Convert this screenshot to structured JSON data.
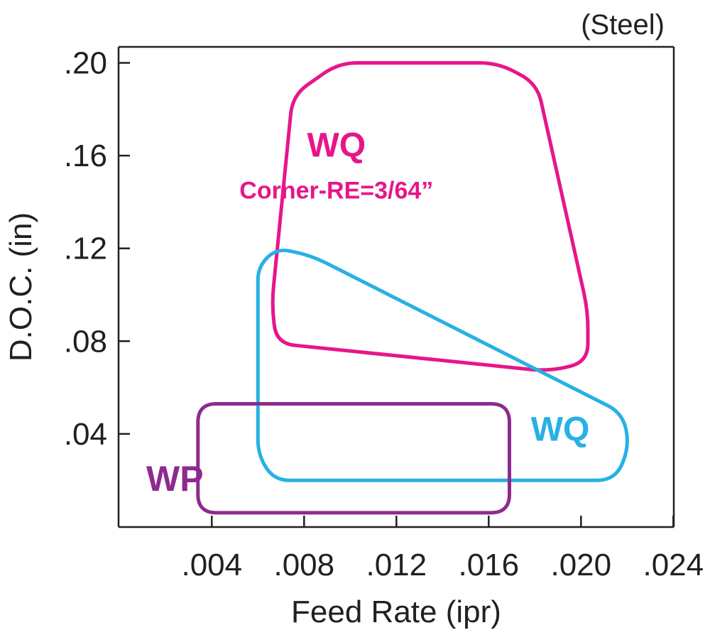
{
  "chart_data": {
    "type": "area",
    "title": "",
    "note": "(Steel)",
    "xlabel": "Feed Rate (ipr)",
    "ylabel": "D.O.C. (in)",
    "xlim": [
      0,
      0.024
    ],
    "ylim": [
      0,
      0.2
    ],
    "x_ticks": [
      {
        "value": 0.004,
        "label": ".004"
      },
      {
        "value": 0.008,
        "label": ".008"
      },
      {
        "value": 0.012,
        "label": ".012"
      },
      {
        "value": 0.016,
        "label": ".016"
      },
      {
        "value": 0.02,
        "label": ".020"
      },
      {
        "value": 0.024,
        "label": ".024"
      }
    ],
    "y_ticks": [
      {
        "value": 0.04,
        "label": ".04"
      },
      {
        "value": 0.08,
        "label": ".08"
      },
      {
        "value": 0.12,
        "label": ".12"
      },
      {
        "value": 0.16,
        "label": ".16"
      },
      {
        "value": 0.2,
        "label": ".20"
      }
    ],
    "grid": false,
    "series": [
      {
        "name": "WQ",
        "sublabel": "Corner-RE=3/64”",
        "color": "#e6168a",
        "label_pos": [
          0.0094,
          0.1595
        ],
        "sublabel_pos": [
          0.0094,
          0.1415
        ],
        "label_size": 48,
        "sublabel_size": 34,
        "points": [
          [
            0.0095,
            0.2
          ],
          [
            0.0164,
            0.2
          ],
          [
            0.0181,
            0.191
          ],
          [
            0.0203,
            0.093
          ],
          [
            0.0203,
            0.071
          ],
          [
            0.0186,
            0.067
          ],
          [
            0.0068,
            0.079
          ],
          [
            0.0066,
            0.096
          ],
          [
            0.0075,
            0.186
          ]
        ]
      },
      {
        "name": "WQ",
        "color": "#27b1e4",
        "label_pos": [
          0.0191,
          0.037
        ],
        "label_size": 48,
        "points": [
          [
            0.0068,
            0.12
          ],
          [
            0.0083,
            0.117
          ],
          [
            0.0218,
            0.049
          ],
          [
            0.0221,
            0.035
          ],
          [
            0.0215,
            0.02
          ],
          [
            0.0067,
            0.02
          ],
          [
            0.006,
            0.031
          ],
          [
            0.006,
            0.112
          ]
        ]
      },
      {
        "name": "WP",
        "color": "#8e2a8f",
        "label_pos": [
          0.0024,
          0.0155
        ],
        "label_size": 50,
        "points": [
          [
            0.0034,
            0.053
          ],
          [
            0.0169,
            0.053
          ],
          [
            0.0169,
            0.006
          ],
          [
            0.0034,
            0.006
          ]
        ]
      }
    ]
  }
}
